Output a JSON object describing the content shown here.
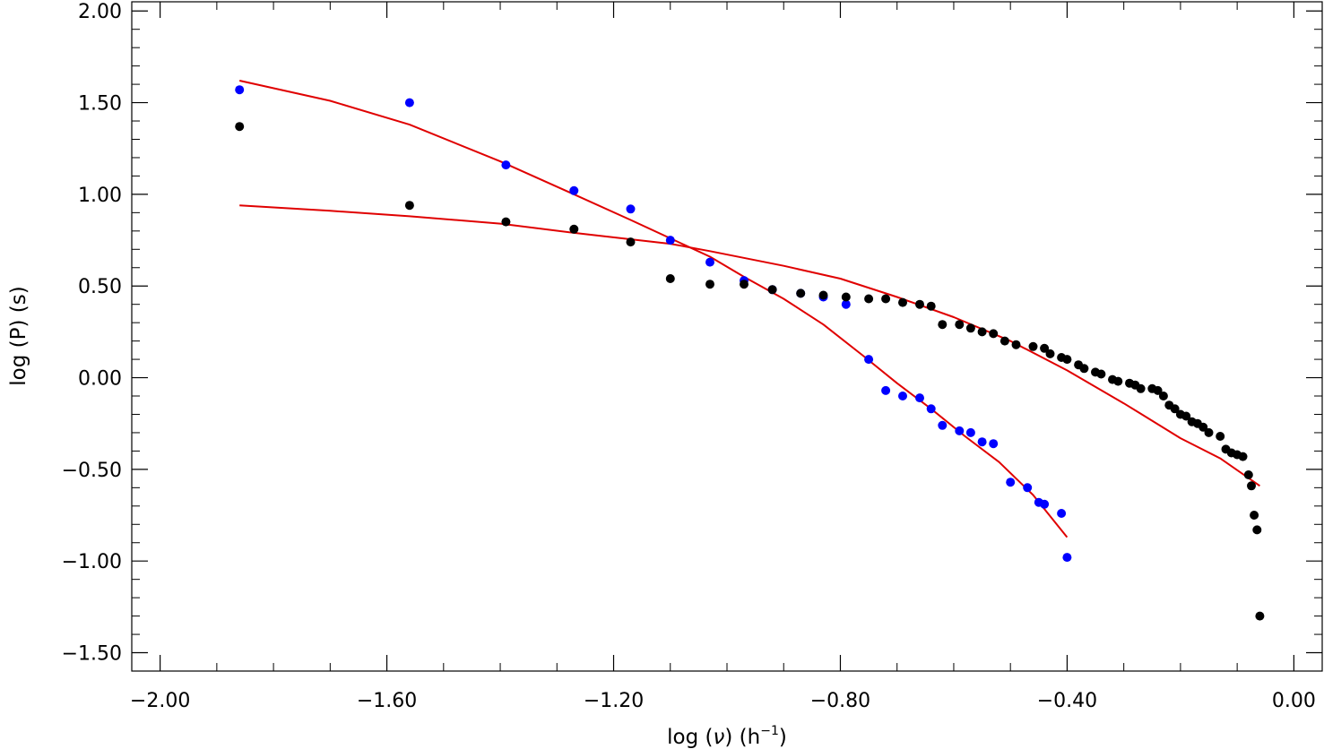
{
  "chart_data": {
    "type": "scatter",
    "xlabel_prefix": "log (",
    "xlabel_symbol": "ν",
    "xlabel_mid": ") (h",
    "xlabel_sup": "−1",
    "xlabel_suffix": ")",
    "ylabel": "log (P) (s)",
    "xlim": [
      -2.05,
      0.05
    ],
    "ylim": [
      -1.6,
      2.05
    ],
    "xticks": [
      -2.0,
      -1.6,
      -1.2,
      -0.8,
      -0.4,
      0.0
    ],
    "xtick_labels": [
      "−2.00",
      "−1.60",
      "−1.20",
      "−0.80",
      "−0.40",
      "0.00"
    ],
    "yticks": [
      2.0,
      1.5,
      1.0,
      0.5,
      0.0,
      -0.5,
      -1.0,
      -1.5
    ],
    "ytick_labels": [
      "2.00",
      "1.50",
      "1.00",
      "0.50",
      "0.00",
      "−0.50",
      "−1.00",
      "−1.50"
    ],
    "grid": false,
    "series": [
      {
        "color": "#0000ff",
        "marker": "circle",
        "points": [
          [
            -1.86,
            1.57
          ],
          [
            -1.56,
            1.5
          ],
          [
            -1.39,
            1.16
          ],
          [
            -1.27,
            1.02
          ],
          [
            -1.17,
            0.92
          ],
          [
            -1.1,
            0.75
          ],
          [
            -1.03,
            0.63
          ],
          [
            -0.97,
            0.53
          ],
          [
            -0.92,
            0.48
          ],
          [
            -0.87,
            0.46
          ],
          [
            -0.83,
            0.44
          ],
          [
            -0.79,
            0.4
          ],
          [
            -0.75,
            0.1
          ],
          [
            -0.72,
            -0.07
          ],
          [
            -0.69,
            -0.1
          ],
          [
            -0.66,
            -0.11
          ],
          [
            -0.64,
            -0.17
          ],
          [
            -0.62,
            -0.26
          ],
          [
            -0.59,
            -0.29
          ],
          [
            -0.57,
            -0.3
          ],
          [
            -0.55,
            -0.35
          ],
          [
            -0.53,
            -0.36
          ],
          [
            -0.5,
            -0.57
          ],
          [
            -0.47,
            -0.6
          ],
          [
            -0.45,
            -0.68
          ],
          [
            -0.44,
            -0.69
          ],
          [
            -0.41,
            -0.74
          ],
          [
            -0.4,
            -0.98
          ]
        ]
      },
      {
        "color": "#000000",
        "marker": "circle",
        "points": [
          [
            -1.86,
            1.37
          ],
          [
            -1.56,
            0.94
          ],
          [
            -1.39,
            0.85
          ],
          [
            -1.27,
            0.81
          ],
          [
            -1.17,
            0.74
          ],
          [
            -1.1,
            0.54
          ],
          [
            -1.03,
            0.51
          ],
          [
            -0.97,
            0.51
          ],
          [
            -0.92,
            0.48
          ],
          [
            -0.87,
            0.46
          ],
          [
            -0.83,
            0.45
          ],
          [
            -0.79,
            0.44
          ],
          [
            -0.75,
            0.43
          ],
          [
            -0.72,
            0.43
          ],
          [
            -0.69,
            0.41
          ],
          [
            -0.66,
            0.4
          ],
          [
            -0.64,
            0.39
          ],
          [
            -0.62,
            0.29
          ],
          [
            -0.59,
            0.29
          ],
          [
            -0.57,
            0.27
          ],
          [
            -0.55,
            0.25
          ],
          [
            -0.53,
            0.24
          ],
          [
            -0.51,
            0.2
          ],
          [
            -0.49,
            0.18
          ],
          [
            -0.46,
            0.17
          ],
          [
            -0.44,
            0.16
          ],
          [
            -0.43,
            0.13
          ],
          [
            -0.41,
            0.11
          ],
          [
            -0.4,
            0.1
          ],
          [
            -0.38,
            0.07
          ],
          [
            -0.37,
            0.05
          ],
          [
            -0.35,
            0.03
          ],
          [
            -0.34,
            0.02
          ],
          [
            -0.32,
            -0.01
          ],
          [
            -0.31,
            -0.02
          ],
          [
            -0.29,
            -0.03
          ],
          [
            -0.28,
            -0.04
          ],
          [
            -0.27,
            -0.06
          ],
          [
            -0.25,
            -0.06
          ],
          [
            -0.24,
            -0.07
          ],
          [
            -0.23,
            -0.1
          ],
          [
            -0.22,
            -0.15
          ],
          [
            -0.21,
            -0.17
          ],
          [
            -0.2,
            -0.2
          ],
          [
            -0.19,
            -0.21
          ],
          [
            -0.18,
            -0.24
          ],
          [
            -0.17,
            -0.25
          ],
          [
            -0.16,
            -0.27
          ],
          [
            -0.15,
            -0.3
          ],
          [
            -0.13,
            -0.32
          ],
          [
            -0.12,
            -0.39
          ],
          [
            -0.11,
            -0.41
          ],
          [
            -0.1,
            -0.42
          ],
          [
            -0.09,
            -0.43
          ],
          [
            -0.08,
            -0.53
          ],
          [
            -0.075,
            -0.59
          ],
          [
            -0.07,
            -0.75
          ],
          [
            -0.065,
            -0.83
          ],
          [
            -0.06,
            -1.3
          ]
        ]
      }
    ],
    "fits": [
      {
        "color": "#e00000",
        "x_range": [
          -1.86,
          -0.4
        ],
        "points": [
          [
            -1.86,
            1.62
          ],
          [
            -1.7,
            1.51
          ],
          [
            -1.56,
            1.38
          ],
          [
            -1.4,
            1.18
          ],
          [
            -1.27,
            1.0
          ],
          [
            -1.17,
            0.86
          ],
          [
            -1.1,
            0.76
          ],
          [
            -1.03,
            0.66
          ],
          [
            -0.97,
            0.55
          ],
          [
            -0.9,
            0.43
          ],
          [
            -0.83,
            0.29
          ],
          [
            -0.76,
            0.12
          ],
          [
            -0.7,
            -0.03
          ],
          [
            -0.64,
            -0.17
          ],
          [
            -0.58,
            -0.32
          ],
          [
            -0.52,
            -0.46
          ],
          [
            -0.46,
            -0.64
          ],
          [
            -0.4,
            -0.87
          ]
        ]
      },
      {
        "color": "#e00000",
        "x_range": [
          -1.86,
          -0.06
        ],
        "points": [
          [
            -1.86,
            0.94
          ],
          [
            -1.7,
            0.91
          ],
          [
            -1.56,
            0.88
          ],
          [
            -1.4,
            0.84
          ],
          [
            -1.27,
            0.79
          ],
          [
            -1.1,
            0.73
          ],
          [
            -1.03,
            0.69
          ],
          [
            -0.9,
            0.61
          ],
          [
            -0.8,
            0.54
          ],
          [
            -0.7,
            0.44
          ],
          [
            -0.6,
            0.33
          ],
          [
            -0.5,
            0.2
          ],
          [
            -0.4,
            0.04
          ],
          [
            -0.3,
            -0.14
          ],
          [
            -0.2,
            -0.33
          ],
          [
            -0.13,
            -0.44
          ],
          [
            -0.06,
            -0.59
          ]
        ]
      }
    ]
  }
}
